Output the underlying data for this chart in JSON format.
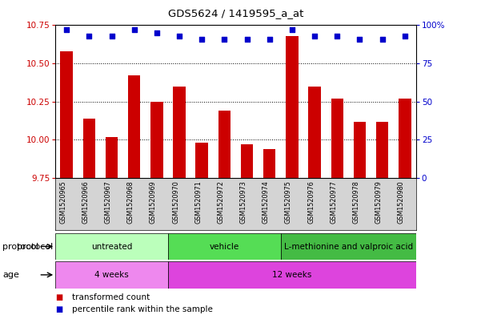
{
  "title": "GDS5624 / 1419595_a_at",
  "samples": [
    "GSM1520965",
    "GSM1520966",
    "GSM1520967",
    "GSM1520968",
    "GSM1520969",
    "GSM1520970",
    "GSM1520971",
    "GSM1520972",
    "GSM1520973",
    "GSM1520974",
    "GSM1520975",
    "GSM1520976",
    "GSM1520977",
    "GSM1520978",
    "GSM1520979",
    "GSM1520980"
  ],
  "transformed_count": [
    10.58,
    10.14,
    10.02,
    10.42,
    10.25,
    10.35,
    9.98,
    10.19,
    9.97,
    9.94,
    10.68,
    10.35,
    10.27,
    10.12,
    10.12,
    10.27
  ],
  "percentile_rank": [
    97,
    93,
    93,
    97,
    95,
    93,
    91,
    91,
    91,
    91,
    97,
    93,
    93,
    91,
    91,
    93
  ],
  "ylim_left": [
    9.75,
    10.75
  ],
  "ylim_right": [
    0,
    100
  ],
  "yticks_left": [
    9.75,
    10.0,
    10.25,
    10.5,
    10.75
  ],
  "yticks_right": [
    0,
    25,
    50,
    75,
    100
  ],
  "bar_color": "#cc0000",
  "dot_color": "#0000cc",
  "protocol_groups": [
    {
      "label": "untreated",
      "start": 0,
      "end": 5,
      "color": "#bbffbb"
    },
    {
      "label": "vehicle",
      "start": 5,
      "end": 10,
      "color": "#55dd55"
    },
    {
      "label": "L-methionine and valproic acid",
      "start": 10,
      "end": 16,
      "color": "#44bb44"
    }
  ],
  "age_groups": [
    {
      "label": "4 weeks",
      "start": 0,
      "end": 5,
      "color": "#ee88ee"
    },
    {
      "label": "12 weeks",
      "start": 5,
      "end": 16,
      "color": "#dd44dd"
    }
  ],
  "legend_bar_label": "transformed count",
  "legend_dot_label": "percentile rank within the sample",
  "tick_color_left": "#cc0000",
  "tick_color_right": "#0000cc",
  "bg_color": "#d4d4d4",
  "fig_width": 6.01,
  "fig_height": 3.93,
  "dpi": 100
}
